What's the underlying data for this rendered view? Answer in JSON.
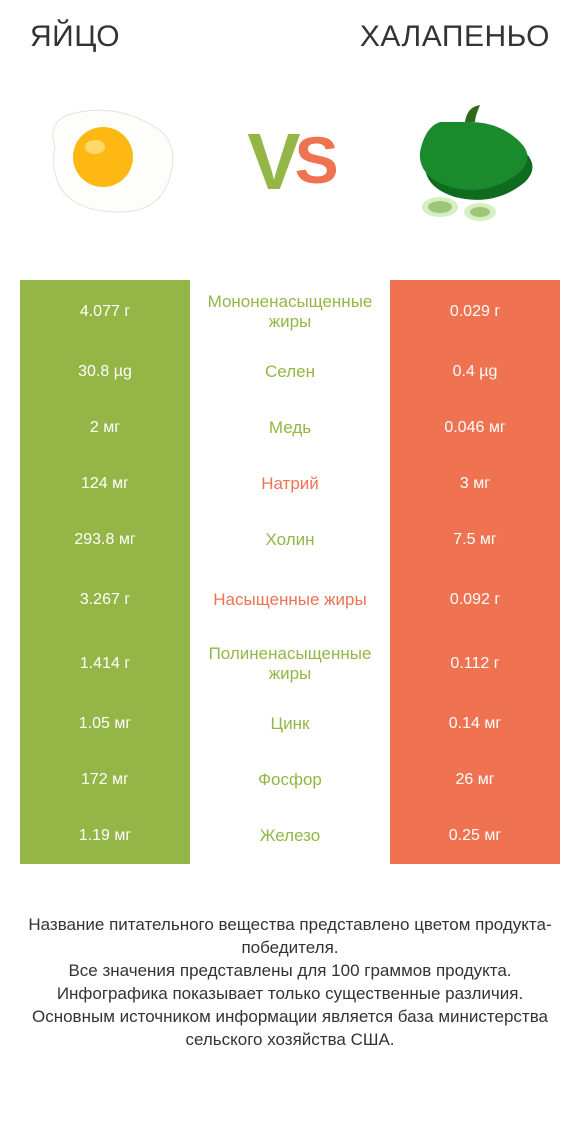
{
  "header": {
    "left_title": "ЯЙЦО",
    "right_title": "ХАЛАПЕНЬО"
  },
  "vs": {
    "v": "V",
    "s": "S"
  },
  "colors": {
    "green": "#94b646",
    "orange": "#ef7251",
    "green_text": "#94b646",
    "orange_text": "#ef7251",
    "vs_v": "#94b646",
    "vs_s": "#ef7251"
  },
  "rows": [
    {
      "left": "4.077 г",
      "mid": "Мононенасыщенные жиры",
      "right": "0.029 г",
      "winner": "green",
      "tall": true
    },
    {
      "left": "30.8 µg",
      "mid": "Селен",
      "right": "0.4 µg",
      "winner": "green",
      "tall": false
    },
    {
      "left": "2 мг",
      "mid": "Медь",
      "right": "0.046 мг",
      "winner": "green",
      "tall": false
    },
    {
      "left": "124 мг",
      "mid": "Натрий",
      "right": "3 мг",
      "winner": "orange",
      "tall": false
    },
    {
      "left": "293.8 мг",
      "mid": "Холин",
      "right": "7.5 мг",
      "winner": "green",
      "tall": false
    },
    {
      "left": "3.267 г",
      "mid": "Насыщенные жиры",
      "right": "0.092 г",
      "winner": "orange",
      "tall": true
    },
    {
      "left": "1.414 г",
      "mid": "Полиненасыщенные жиры",
      "right": "0.112 г",
      "winner": "green",
      "tall": true
    },
    {
      "left": "1.05 мг",
      "mid": "Цинк",
      "right": "0.14 мг",
      "winner": "green",
      "tall": false
    },
    {
      "left": "172 мг",
      "mid": "Фосфор",
      "right": "26 мг",
      "winner": "green",
      "tall": false
    },
    {
      "left": "1.19 мг",
      "mid": "Железо",
      "right": "0.25 мг",
      "winner": "green",
      "tall": false
    }
  ],
  "footer": {
    "l1": "Название питательного вещества представлено цветом продукта-победителя.",
    "l2": "Все значения представлены для 100 граммов продукта.",
    "l3": "Инфографика показывает только существенные различия.",
    "l4": "Основным источником информации является база министерства сельского хозяйства США."
  }
}
